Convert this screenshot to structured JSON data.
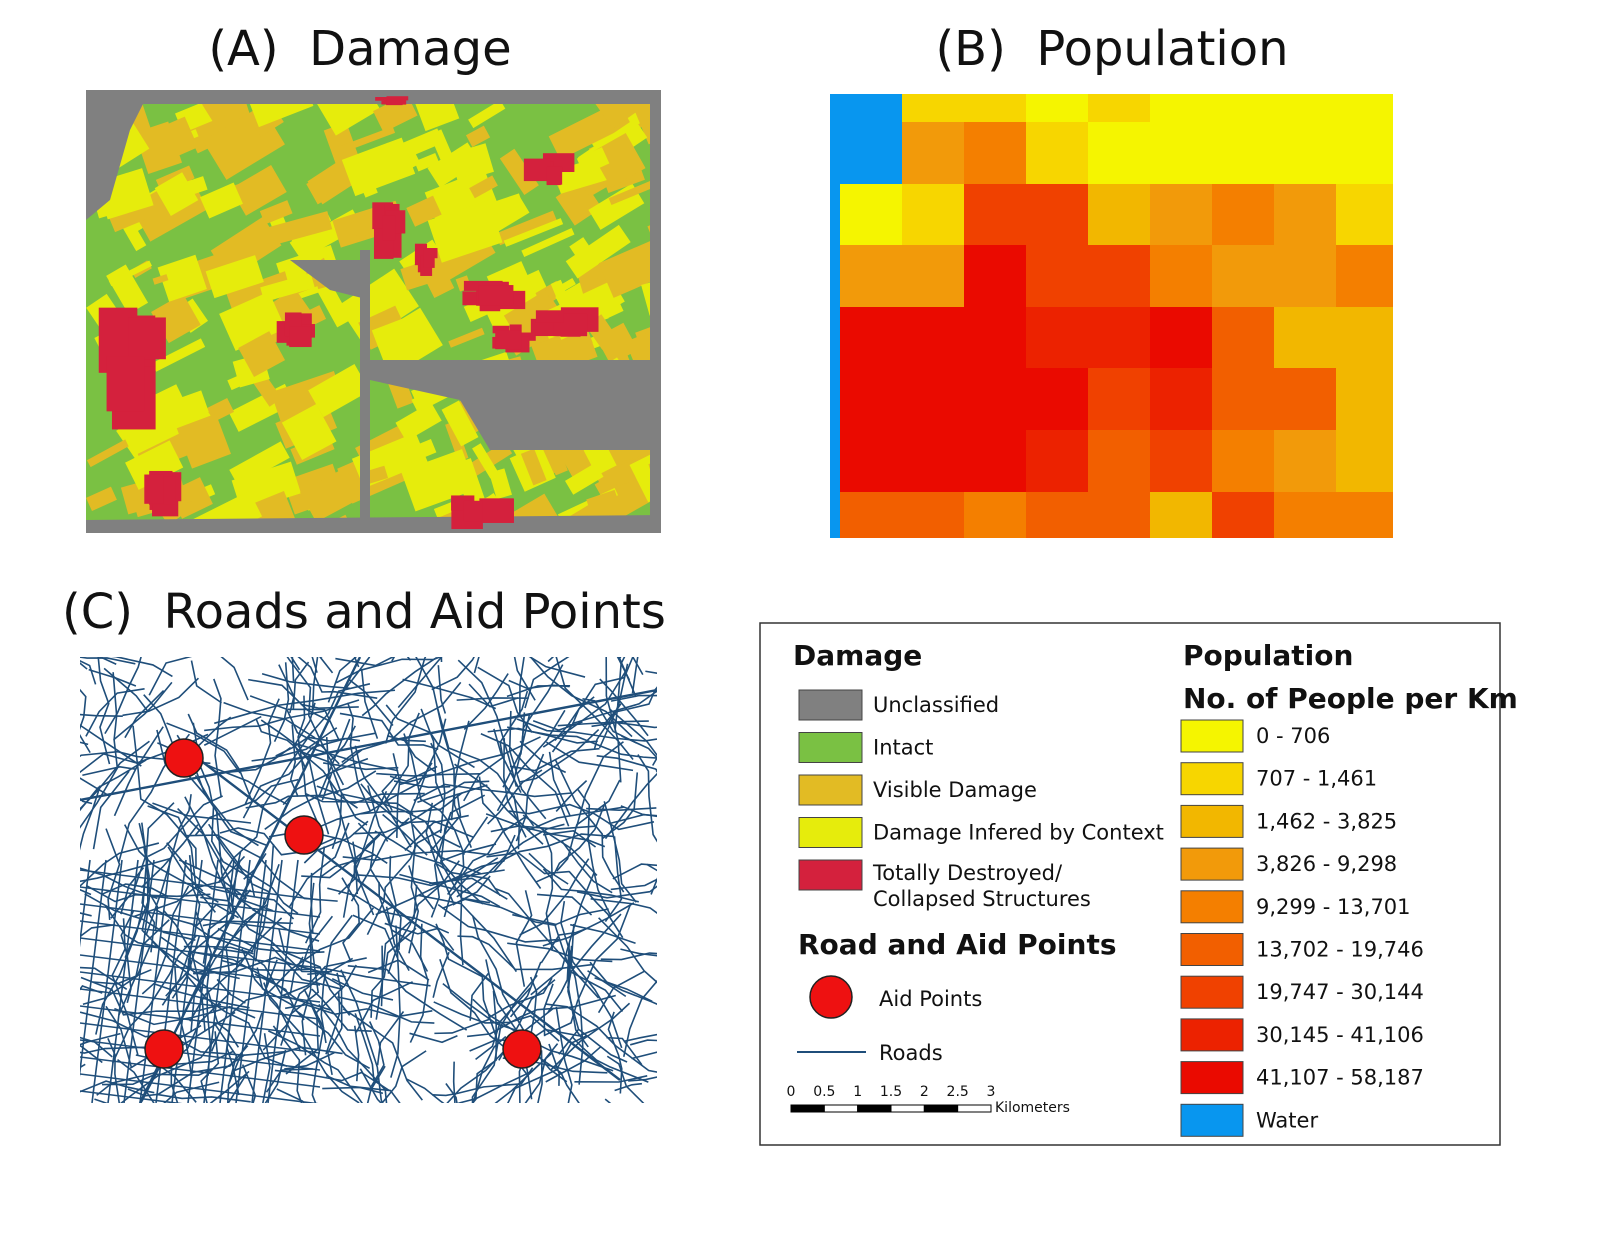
{
  "panels": [
    {
      "title": "(A)  Damage"
    },
    {
      "title": "(B)  Population"
    },
    {
      "title": "(C)  Roads and Aid Points"
    }
  ],
  "legend": {
    "damage": {
      "title": "Damage",
      "items": [
        {
          "label": "Unclassified",
          "color": "#808080"
        },
        {
          "label": "Intact",
          "color": "#7ac143"
        },
        {
          "label": "Visible Damage",
          "color": "#e2bb24"
        },
        {
          "label": "Damage Infered by Context",
          "color": "#e6ec0c"
        },
        {
          "label": [
            "Totally Destroyed/",
            "Collapsed Structures"
          ],
          "color": "#d4213d"
        }
      ]
    },
    "population": {
      "title": "Population",
      "subtitle": "No. of People per Km",
      "items": [
        {
          "label": "0 - 706",
          "color": "#f5f500"
        },
        {
          "label": "707 - 1,461",
          "color": "#f7d600"
        },
        {
          "label": "1,462 - 3,825",
          "color": "#f2b700"
        },
        {
          "label": "3,826 - 9,298",
          "color": "#f29a0a"
        },
        {
          "label": "9,299 - 13,701",
          "color": "#f47f00"
        },
        {
          "label": "13,702 - 19,746",
          "color": "#f25f00"
        },
        {
          "label": "19,747 - 30,144",
          "color": "#f04100"
        },
        {
          "label": "30,145 - 41,106",
          "color": "#ec2200"
        },
        {
          "label": "41,107 - 58,187",
          "color": "#ea0a00"
        },
        {
          "label": "Water",
          "color": "#0896ef"
        }
      ]
    },
    "roads": {
      "title": "Road and Aid Points",
      "items": [
        {
          "label": "Aid Points",
          "color": "#ee1111"
        },
        {
          "label": "Roads",
          "color": "#1f4e7a"
        }
      ]
    },
    "scale": {
      "ticks": [
        0,
        0.5,
        1,
        1.5,
        2,
        2.5,
        3
      ],
      "unit": "Kilometers"
    }
  }
}
